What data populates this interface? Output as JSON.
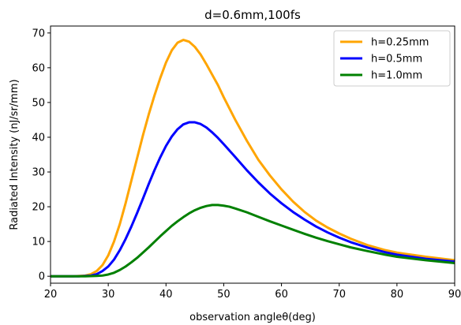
{
  "chart_data": {
    "type": "line",
    "title": "d=0.6mm,100fs",
    "xlabel": "observation angleθ(deg)",
    "ylabel": "Radiated Intensity (nJ/sr/mm)",
    "xlim": [
      20,
      90
    ],
    "ylim": [
      -2,
      72
    ],
    "xticks": [
      20,
      30,
      40,
      50,
      60,
      70,
      80,
      90
    ],
    "yticks": [
      0,
      10,
      20,
      30,
      40,
      50,
      60,
      70
    ],
    "grid": false,
    "legend_position": "top-right",
    "series": [
      {
        "name": "h=0.25mm",
        "color": "#ffa500",
        "x": [
          20,
          24,
          26,
          27,
          28,
          29,
          30,
          31,
          32,
          33,
          34,
          35,
          36,
          37,
          38,
          39,
          40,
          41,
          42,
          43,
          44,
          45,
          46,
          47,
          48,
          49,
          50,
          52,
          54,
          56,
          58,
          60,
          62,
          64,
          66,
          68,
          70,
          72,
          75,
          78,
          80,
          85,
          90
        ],
        "y": [
          0,
          0,
          0.2,
          0.6,
          1.5,
          3.2,
          6,
          10,
          15,
          21,
          27.5,
          34,
          40.5,
          46.5,
          52,
          57,
          61.5,
          65,
          67.2,
          68,
          67.5,
          66,
          63.8,
          61,
          58,
          55,
          51.5,
          45,
          39,
          33.5,
          29,
          25,
          21.5,
          18.5,
          16,
          14,
          12.3,
          10.8,
          8.9,
          7.5,
          6.8,
          5.6,
          4.6
        ]
      },
      {
        "name": "h=0.5mm",
        "color": "#0000ff",
        "x": [
          20,
          25,
          27,
          28,
          29,
          30,
          31,
          32,
          33,
          34,
          35,
          36,
          37,
          38,
          39,
          40,
          41,
          42,
          43,
          44,
          45,
          46,
          47,
          48,
          49,
          50,
          52,
          54,
          56,
          58,
          60,
          62,
          64,
          66,
          68,
          70,
          72,
          75,
          78,
          80,
          85,
          90
        ],
        "y": [
          0,
          0,
          0.2,
          0.6,
          1.5,
          2.8,
          4.8,
          7.5,
          10.7,
          14.3,
          18.2,
          22.3,
          26.5,
          30.5,
          34.2,
          37.5,
          40.2,
          42.3,
          43.7,
          44.3,
          44.3,
          43.8,
          42.8,
          41.4,
          39.8,
          38,
          34.3,
          30.5,
          27,
          23.8,
          21,
          18.5,
          16.3,
          14.3,
          12.6,
          11.1,
          9.8,
          8.2,
          6.9,
          6.2,
          5,
          4.2
        ]
      },
      {
        "name": "h=1.0mm",
        "color": "#008000",
        "x": [
          20,
          26,
          28,
          29,
          30,
          31,
          32,
          33,
          34,
          35,
          36,
          37,
          38,
          39,
          40,
          41,
          42,
          43,
          44,
          45,
          46,
          47,
          48,
          49,
          50,
          51,
          52,
          54,
          56,
          58,
          60,
          62,
          64,
          66,
          68,
          70,
          72,
          75,
          78,
          80,
          85,
          90
        ],
        "y": [
          0,
          0,
          0.1,
          0.2,
          0.5,
          1,
          1.8,
          2.8,
          4,
          5.3,
          6.8,
          8.3,
          9.9,
          11.5,
          13,
          14.5,
          15.8,
          17,
          18.1,
          19,
          19.7,
          20.2,
          20.5,
          20.5,
          20.3,
          20,
          19.5,
          18.4,
          17.1,
          15.8,
          14.6,
          13.4,
          12.2,
          11.1,
          10.1,
          9.2,
          8.3,
          7.2,
          6.2,
          5.6,
          4.6,
          3.8
        ]
      }
    ]
  }
}
